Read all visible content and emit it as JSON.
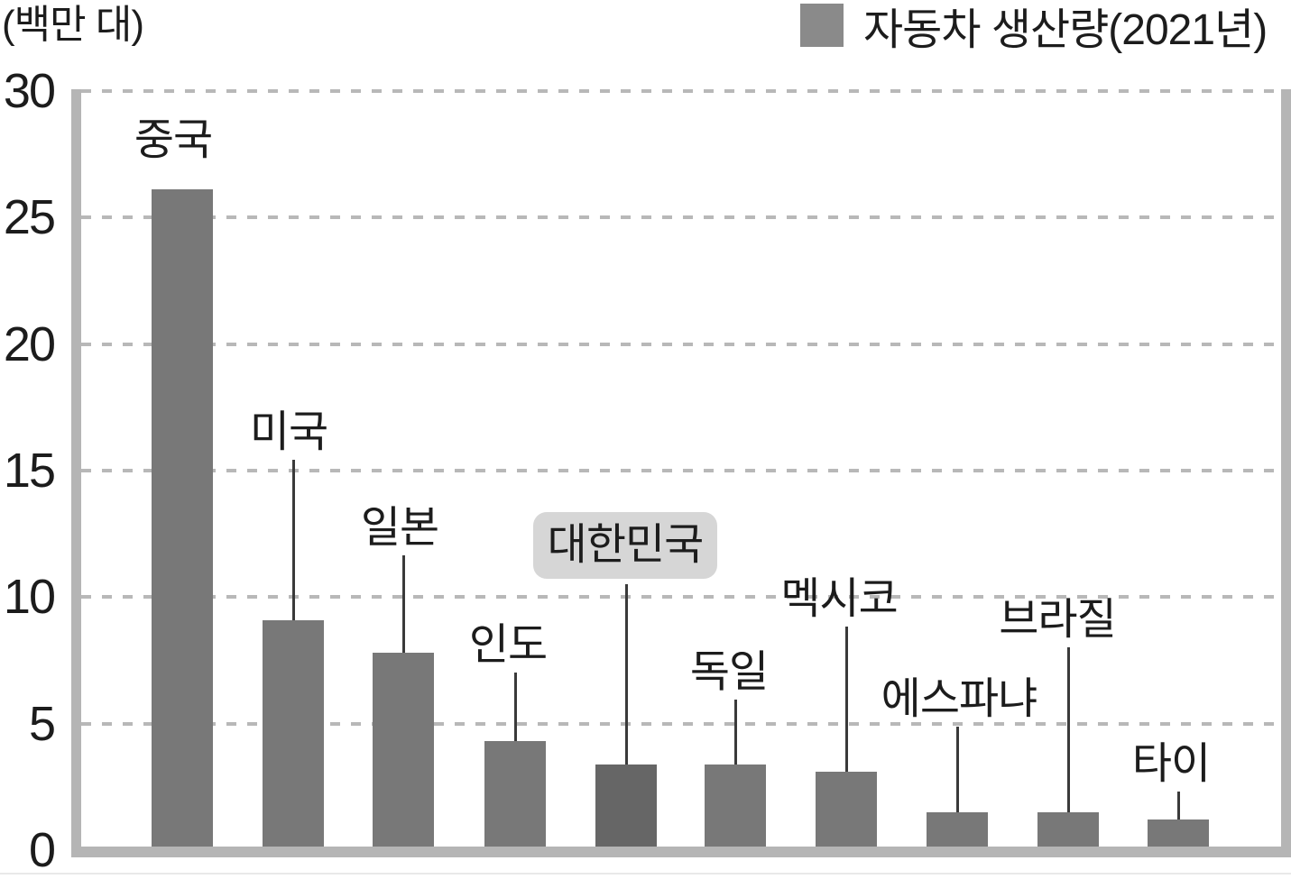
{
  "unit_label": "(백만 대)",
  "legend": {
    "label": "자동차 생산량(2021년)",
    "swatch_color": "#8a8a8a",
    "position": "top-right"
  },
  "y_axis": {
    "ticks": [
      0,
      5,
      10,
      15,
      20,
      25,
      30
    ],
    "min": 0,
    "max": 30,
    "unit": "백만 대"
  },
  "chart_data": {
    "type": "bar",
    "title": "자동차 생산량(2021년)",
    "xlabel": "",
    "ylabel": "(백만 대)",
    "ylim": [
      0,
      30
    ],
    "grid": "horizontal-dashed",
    "legend_position": "top-right",
    "categories": [
      "중국",
      "미국",
      "일본",
      "인도",
      "대한민국",
      "독일",
      "멕시코",
      "에스파냐",
      "브라질",
      "타이"
    ],
    "values": [
      26.1,
      9.1,
      7.8,
      4.3,
      3.4,
      3.4,
      3.1,
      1.5,
      1.5,
      1.2
    ],
    "highlighted_category": "대한민국"
  },
  "colors": {
    "bar": "#787878",
    "bar_highlight": "#666666",
    "legend_swatch": "#8a8a8a",
    "frame": "#b5b5b5",
    "gridline": "#b8b8b8",
    "text": "#1c1c1c",
    "highlight_box_bg": "#d6d6d6",
    "leader_line": "#3a3a3a",
    "background": "#ffffff"
  }
}
